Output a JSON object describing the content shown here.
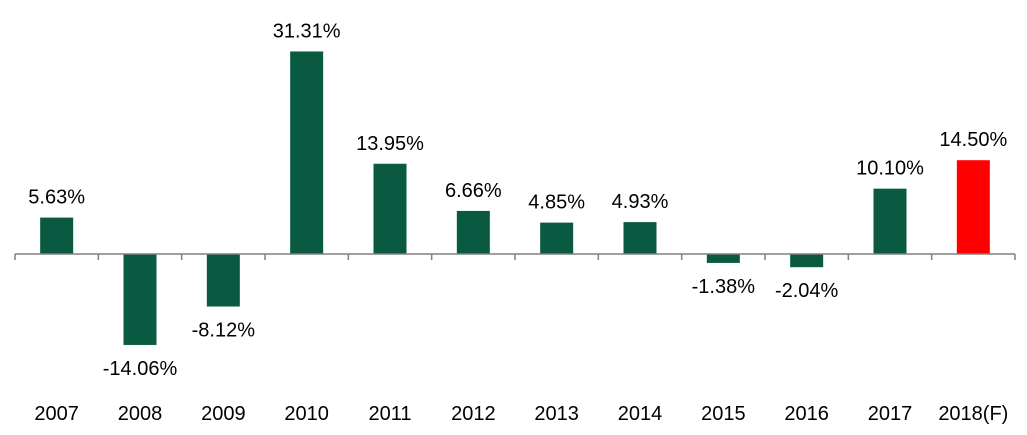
{
  "chart_data": {
    "type": "bar",
    "categories": [
      "2007",
      "2008",
      "2009",
      "2010",
      "2011",
      "2012",
      "2013",
      "2014",
      "2015",
      "2016",
      "2017",
      "2018(F)"
    ],
    "values": [
      5.63,
      -14.06,
      -8.12,
      31.31,
      13.95,
      6.66,
      4.85,
      4.93,
      -1.38,
      -2.04,
      10.1,
      14.5
    ],
    "value_labels": [
      "5.63%",
      "-14.06%",
      "-8.12%",
      "31.31%",
      "13.95%",
      "6.66%",
      "4.85%",
      "4.93%",
      "-1.38%",
      "-2.04%",
      "10.10%",
      "14.50%"
    ],
    "title": "",
    "xlabel": "",
    "ylabel": "",
    "ylim": [
      -20,
      35
    ],
    "grid": false,
    "colors": {
      "default": "#0a5a41",
      "highlight": "#ff0000",
      "highlight_index": 11
    }
  }
}
